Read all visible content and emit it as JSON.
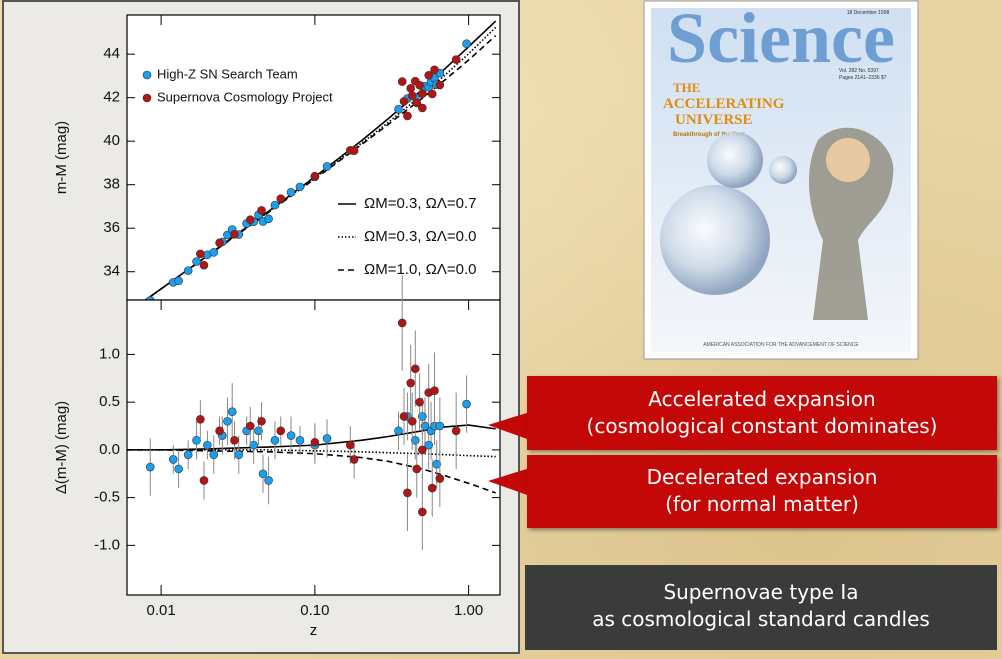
{
  "chart_data": [
    {
      "type": "scatter",
      "ylabel": "m-M (mag)",
      "xscale": "log",
      "xlim": [
        0.006,
        1.6
      ],
      "ylim": [
        32.7,
        45.8
      ],
      "yticks": [
        34,
        36,
        38,
        40,
        42,
        44
      ],
      "series": [
        {
          "name": "High-Z SN Search Team",
          "color": "#1a9ff0",
          "x": [
            0.0085,
            0.012,
            0.013,
            0.015,
            0.017,
            0.02,
            0.022,
            0.025,
            0.027,
            0.029,
            0.032,
            0.036,
            0.04,
            0.043,
            0.046,
            0.05,
            0.055,
            0.07,
            0.08,
            0.1,
            0.12,
            0.35,
            0.4,
            0.45,
            0.5,
            0.52,
            0.55,
            0.57,
            0.6,
            0.62,
            0.65,
            0.97
          ],
          "values": [
            32.68,
            33.51,
            33.58,
            34.05,
            34.47,
            34.78,
            34.89,
            35.37,
            35.69,
            35.94,
            35.71,
            36.22,
            36.3,
            36.61,
            36.31,
            36.43,
            37.06,
            37.65,
            37.9,
            38.36,
            38.84,
            41.47,
            41.96,
            42.01,
            42.53,
            42.53,
            42.48,
            42.72,
            42.91,
            42.6,
            43.13,
            44.48
          ]
        },
        {
          "name": "Supernova Cosmology Project",
          "color": "#b31414",
          "x": [
            0.018,
            0.019,
            0.024,
            0.03,
            0.038,
            0.045,
            0.06,
            0.1,
            0.17,
            0.18,
            0.37,
            0.38,
            0.4,
            0.42,
            0.43,
            0.45,
            0.46,
            0.48,
            0.5,
            0.5,
            0.55,
            0.58,
            0.6,
            0.65,
            0.83
          ],
          "values": [
            34.82,
            34.3,
            35.33,
            35.72,
            36.39,
            36.82,
            37.36,
            38.39,
            39.58,
            39.56,
            42.74,
            41.83,
            41.16,
            42.43,
            42.09,
            42.76,
            41.76,
            42.57,
            42.18,
            41.53,
            43.03,
            42.17,
            43.28,
            42.58,
            43.75
          ]
        }
      ],
      "lines": [
        {
          "name": "ΩM=0.3, ΩΛ=0.7",
          "style": "solid",
          "color": "#000000",
          "x": [
            0.006,
            0.01,
            0.02,
            0.05,
            0.1,
            0.2,
            0.3,
            0.5,
            0.7,
            1.0,
            1.5
          ],
          "values": [
            32.1,
            33.21,
            34.74,
            36.78,
            38.36,
            40.01,
            41.03,
            42.38,
            43.32,
            44.34,
            45.52
          ]
        },
        {
          "name": "ΩM=0.3, ΩΛ=0.0",
          "style": "dotted",
          "color": "#000000",
          "x": [
            0.006,
            0.01,
            0.02,
            0.05,
            0.1,
            0.2,
            0.3,
            0.5,
            0.7,
            1.0,
            1.5
          ],
          "values": [
            32.1,
            33.21,
            34.73,
            36.75,
            38.3,
            39.89,
            40.86,
            42.14,
            43.03,
            44.02,
            45.23
          ]
        },
        {
          "name": "ΩM=1.0, ΩΛ=0.0",
          "style": "dashed",
          "color": "#000000",
          "x": [
            0.006,
            0.01,
            0.02,
            0.05,
            0.1,
            0.2,
            0.3,
            0.5,
            0.7,
            1.0,
            1.5
          ],
          "values": [
            32.1,
            33.21,
            34.72,
            36.73,
            38.27,
            39.83,
            40.77,
            41.98,
            42.81,
            43.73,
            44.85
          ]
        }
      ]
    },
    {
      "type": "scatter",
      "xlabel": "z",
      "ylabel": "Δ(m-M) (mag)",
      "xscale": "log",
      "xlim": [
        0.006,
        1.6
      ],
      "ylim": [
        -1.52,
        1.57
      ],
      "xticks": [
        0.01,
        {
          "value": 0.1,
          "label": "0.10"
        },
        {
          "value": 1,
          "label": "1.00"
        }
      ],
      "yticks": [
        {
          "value": -1,
          "label": "-1.0"
        },
        -0.5,
        {
          "value": 0,
          "label": "0.0"
        },
        0.5,
        {
          "value": 1,
          "label": "1.0"
        }
      ],
      "series": [
        {
          "color": "#1a9ff0",
          "x": [
            0.0085,
            0.012,
            0.013,
            0.015,
            0.017,
            0.02,
            0.022,
            0.025,
            0.027,
            0.029,
            0.032,
            0.036,
            0.04,
            0.043,
            0.046,
            0.05,
            0.055,
            0.07,
            0.08,
            0.1,
            0.12,
            0.35,
            0.4,
            0.45,
            0.5,
            0.52,
            0.55,
            0.57,
            0.6,
            0.62,
            0.65,
            0.97
          ],
          "values": [
            -0.18,
            -0.1,
            -0.2,
            -0.05,
            0.1,
            0.05,
            -0.05,
            0.15,
            0.3,
            0.4,
            -0.05,
            0.2,
            0.05,
            0.2,
            -0.25,
            -0.32,
            0.1,
            0.15,
            0.1,
            0.05,
            0.12,
            0.2,
            0.35,
            0.1,
            0.35,
            0.25,
            0.05,
            0.2,
            0.25,
            -0.15,
            0.25,
            0.48
          ],
          "errors": [
            0.3,
            0.15,
            0.2,
            0.15,
            0.2,
            0.15,
            0.2,
            0.2,
            0.25,
            0.3,
            0.2,
            0.15,
            0.2,
            0.15,
            0.2,
            0.25,
            0.2,
            0.2,
            0.15,
            0.2,
            0.2,
            0.2,
            0.25,
            0.2,
            0.2,
            0.3,
            0.25,
            0.3,
            0.2,
            0.25,
            0.3,
            0.3
          ]
        },
        {
          "color": "#b31414",
          "x": [
            0.018,
            0.019,
            0.024,
            0.03,
            0.038,
            0.045,
            0.06,
            0.1,
            0.17,
            0.18,
            0.37,
            0.38,
            0.4,
            0.42,
            0.43,
            0.45,
            0.46,
            0.48,
            0.5,
            0.5,
            0.55,
            0.58,
            0.6,
            0.65,
            0.83
          ],
          "values": [
            0.32,
            -0.32,
            0.2,
            0.1,
            0.25,
            0.3,
            0.2,
            0.08,
            0.05,
            -0.1,
            1.33,
            0.35,
            -0.45,
            0.7,
            0.3,
            0.85,
            -0.2,
            0.5,
            0,
            -0.65,
            0.6,
            -0.4,
            0.62,
            -0.3,
            0.2
          ],
          "errors": [
            0.2,
            0.2,
            0.15,
            0.2,
            0.2,
            0.2,
            0.15,
            0.2,
            0.2,
            0.2,
            0.5,
            0.3,
            0.4,
            0.4,
            0.3,
            0.4,
            0.3,
            0.3,
            0.3,
            0.4,
            0.3,
            0.3,
            0.4,
            0.3,
            0.4
          ]
        }
      ],
      "lines": [
        {
          "style": "solid",
          "color": "#000000",
          "x": [
            0.006,
            0.01,
            0.02,
            0.05,
            0.1,
            0.2,
            0.3,
            0.5,
            0.7,
            1.0,
            1.5
          ],
          "values": [
            0,
            0,
            0.01,
            0.03,
            0.05,
            0.1,
            0.14,
            0.2,
            0.24,
            0.26,
            0.22
          ]
        },
        {
          "style": "dotted",
          "color": "#000000",
          "x": [
            0.006,
            0.01,
            0.02,
            0.05,
            0.1,
            0.2,
            0.3,
            0.5,
            0.7,
            1.0,
            1.5
          ],
          "values": [
            0,
            0,
            0,
            0,
            -0.01,
            -0.02,
            -0.03,
            -0.04,
            -0.05,
            -0.06,
            -0.07
          ]
        },
        {
          "style": "dashed",
          "color": "#000000",
          "x": [
            0.006,
            0.01,
            0.02,
            0.05,
            0.1,
            0.2,
            0.3,
            0.5,
            0.7,
            1.0,
            1.5
          ],
          "values": [
            0,
            0,
            -0.01,
            -0.02,
            -0.04,
            -0.08,
            -0.12,
            -0.2,
            -0.27,
            -0.35,
            -0.45
          ]
        }
      ]
    }
  ],
  "cover": {
    "title": "Science",
    "date": "18 December 1998",
    "issue": "Vol. 282   No. 5397",
    "pages": "Pages 2141–2336  $7",
    "headline": [
      "THE",
      "ACCELERATING",
      "UNIVERSE"
    ],
    "subhead": "Breakthrough of the Year",
    "footer": "AMERICAN ASSOCIATION FOR THE ADVANCEMENT OF SCIENCE"
  },
  "callouts": [
    {
      "lines": [
        "Accelerated expansion",
        "(cosmological constant dominates)"
      ]
    },
    {
      "lines": [
        "Decelerated expansion",
        "(for normal matter)"
      ]
    }
  ],
  "caption": [
    "Supernovae type Ia",
    "as cosmological standard candles"
  ]
}
